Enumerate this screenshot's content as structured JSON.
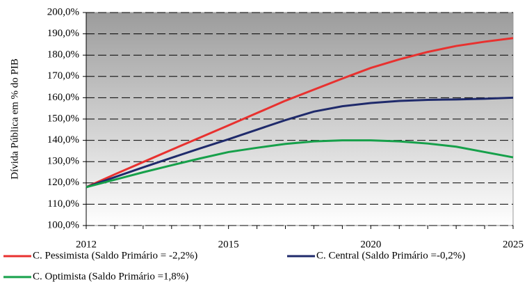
{
  "chart_data": {
    "type": "line",
    "y_label": "Dívida Pública em % do PIB",
    "categories": [
      "2012",
      null,
      null,
      null,
      null,
      "2015",
      null,
      null,
      null,
      null,
      "2020",
      null,
      null,
      null,
      null,
      "2025"
    ],
    "series": [
      {
        "name": "C. Pessimista (Saldo Primário = -2,2%)",
        "color": "#e8312f",
        "values": [
          118,
          124,
          129.8,
          135.6,
          141.3,
          147,
          152.8,
          158.6,
          163.8,
          169,
          174,
          178,
          181.5,
          184.3,
          186.3,
          188
        ]
      },
      {
        "name": "C. Central (Saldo Primário =-0,2%)",
        "color": "#1f2a6b",
        "values": [
          118,
          122.7,
          127.3,
          131.8,
          136.2,
          140.5,
          145,
          149.5,
          153.5,
          156,
          157.5,
          158.5,
          159,
          159.2,
          159.5,
          160
        ]
      },
      {
        "name": "C. Optimista (Saldo Primário =1,8%)",
        "color": "#16a04a",
        "values": [
          118,
          121.5,
          125,
          128.3,
          131.5,
          134.5,
          136.5,
          138.3,
          139.5,
          140,
          140,
          139.5,
          138.5,
          137,
          134.5,
          132
        ]
      }
    ],
    "ylim": [
      100,
      200
    ],
    "yticks": [
      {
        "value": 100,
        "label": "100,0%"
      },
      {
        "value": 110,
        "label": "110,0%"
      },
      {
        "value": 120,
        "label": "120,0%"
      },
      {
        "value": 130,
        "label": "130,0%"
      },
      {
        "value": 140,
        "label": "140,0%"
      },
      {
        "value": 150,
        "label": "150,0%"
      },
      {
        "value": 160,
        "label": "160,0%"
      },
      {
        "value": 170,
        "label": "170,0%"
      },
      {
        "value": 180,
        "label": "180,0%"
      },
      {
        "value": 190,
        "label": "190,0%"
      },
      {
        "value": 200,
        "label": "200,0%"
      }
    ],
    "grid": true
  }
}
